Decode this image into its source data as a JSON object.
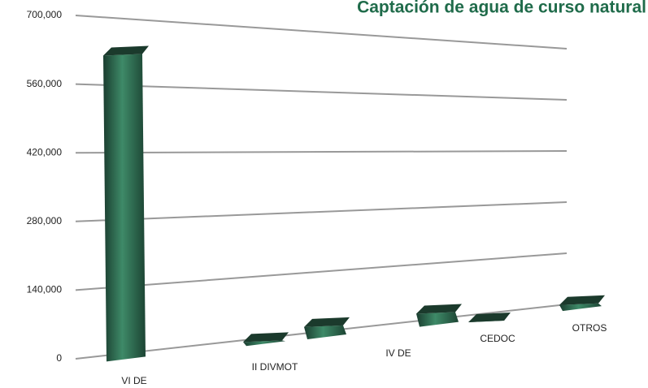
{
  "chart_data": {
    "type": "bar3d",
    "title": "Captación de agua de curso natural",
    "categories": [
      "VI DE",
      "II DIVMOT",
      null,
      "IV DE",
      "CEDOC",
      "OTROS"
    ],
    "values": [
      650000,
      20000,
      40000,
      45000,
      10000,
      30000
    ],
    "color": "#2f6b52",
    "ylim": [
      0,
      700000
    ],
    "yticks": [
      0,
      {
        "value": 140000,
        "label": "140,000"
      },
      {
        "value": 280000,
        "label": "280,000"
      },
      {
        "value": 420000,
        "label": "420,000"
      },
      {
        "value": 560000,
        "label": "560,000"
      },
      {
        "value": 700000,
        "label": "700,000"
      }
    ],
    "grid": true
  }
}
